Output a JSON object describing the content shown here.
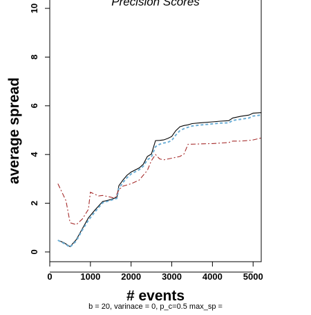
{
  "chart_data": {
    "type": "line",
    "title": "Precision Scores",
    "xlabel": "# events",
    "ylabel": "average spread",
    "caption": "b = 20, varinace = 0,  p_c=0.5 max_sp =",
    "xlim": [
      0,
      5200
    ],
    "ylim": [
      -0.4,
      10.4
    ],
    "x_ticks": [
      0,
      1000,
      2000,
      3000,
      4000,
      5000
    ],
    "y_ticks": [
      0,
      2,
      4,
      6,
      8,
      10
    ],
    "grid": false,
    "series": [
      {
        "style": "solid",
        "color": "#000000",
        "x": [
          200,
          350,
          500,
          650,
          800,
          950,
          1100,
          1300,
          1500,
          1650,
          1700,
          1800,
          1900,
          2000,
          2200,
          2300,
          2400,
          2500,
          2600,
          2700,
          2800,
          2900,
          3000,
          3100,
          3200,
          3300,
          3400,
          3500,
          3700,
          4000,
          4200,
          4400,
          4500,
          4700,
          4900,
          5000,
          5200
        ],
        "y": [
          0.48,
          0.38,
          0.22,
          0.5,
          0.95,
          1.4,
          1.7,
          2.07,
          2.15,
          2.25,
          2.72,
          2.95,
          3.15,
          3.28,
          3.45,
          3.6,
          3.92,
          4.02,
          4.57,
          4.58,
          4.6,
          4.66,
          4.74,
          4.98,
          5.14,
          5.19,
          5.22,
          5.27,
          5.3,
          5.34,
          5.37,
          5.39,
          5.5,
          5.57,
          5.62,
          5.7,
          5.72
        ]
      },
      {
        "style": "dashed",
        "color": "#6baed6",
        "x": [
          200,
          350,
          500,
          650,
          800,
          950,
          1100,
          1300,
          1500,
          1650,
          1700,
          1800,
          1900,
          2000,
          2200,
          2300,
          2400,
          2500,
          2600,
          2700,
          2800,
          2900,
          3000,
          3100,
          3200,
          3300,
          3400,
          3500,
          3700,
          4000,
          4200,
          4400,
          4500,
          4700,
          4900,
          5000,
          5200
        ],
        "y": [
          0.48,
          0.35,
          0.2,
          0.45,
          0.9,
          1.3,
          1.62,
          2.02,
          2.12,
          2.2,
          2.6,
          2.85,
          3.05,
          3.2,
          3.38,
          3.52,
          3.78,
          3.9,
          4.32,
          4.42,
          4.47,
          4.5,
          4.58,
          4.8,
          4.98,
          5.06,
          5.12,
          5.17,
          5.21,
          5.26,
          5.29,
          5.3,
          5.4,
          5.45,
          5.5,
          5.58,
          5.62
        ]
      },
      {
        "style": "dashdot",
        "color": "#a52a2a",
        "x": [
          200,
          400,
          500,
          650,
          800,
          950,
          1000,
          1200,
          1300,
          1500,
          1600,
          1700,
          1800,
          2000,
          2200,
          2300,
          2400,
          2500,
          2600,
          2700,
          2800,
          3000,
          3200,
          3300,
          3400,
          3600,
          3800,
          4000,
          4200,
          4400,
          4500,
          4700,
          4900,
          5000,
          5200
        ],
        "y": [
          2.8,
          2.1,
          1.2,
          1.12,
          1.35,
          1.75,
          2.45,
          2.3,
          2.32,
          2.25,
          2.2,
          2.55,
          2.7,
          2.8,
          2.95,
          3.15,
          3.35,
          3.75,
          4.0,
          3.82,
          3.78,
          3.85,
          3.92,
          4.02,
          4.42,
          4.43,
          4.44,
          4.45,
          4.47,
          4.49,
          4.55,
          4.55,
          4.58,
          4.6,
          4.68
        ]
      }
    ]
  }
}
